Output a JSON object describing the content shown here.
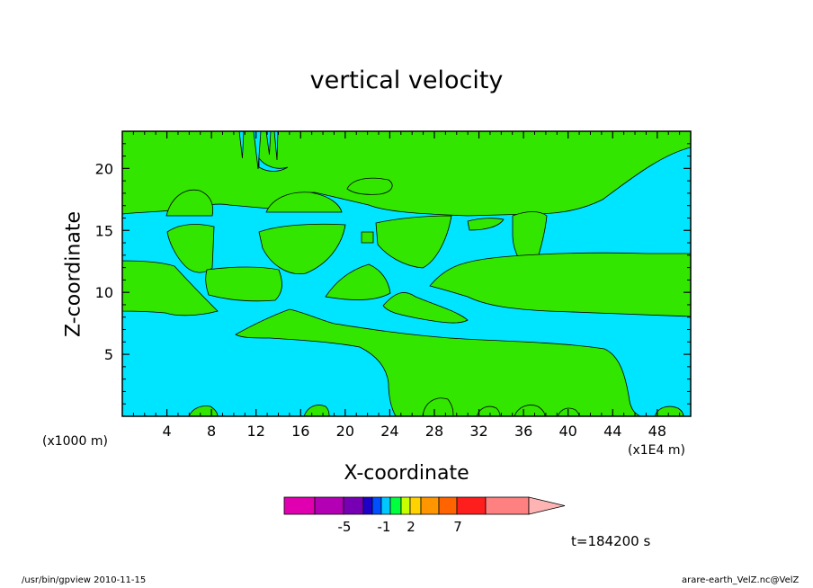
{
  "chart_data": {
    "type": "heatmap",
    "title": "vertical velocity",
    "xlabel": "X-coordinate",
    "ylabel": "Z-coordinate",
    "x_unit_left": "(x1000 m)",
    "x_unit_right": "(x1E4 m)",
    "xlim": [
      0,
      51
    ],
    "ylim": [
      0,
      23
    ],
    "x_ticks": [
      "4",
      "8",
      "12",
      "16",
      "20",
      "24",
      "28",
      "32",
      "36",
      "40",
      "44",
      "48"
    ],
    "x_tick_values": [
      4,
      8,
      12,
      16,
      20,
      24,
      28,
      32,
      36,
      40,
      44,
      48
    ],
    "y_ticks": [
      "5",
      "10",
      "15",
      "20"
    ],
    "y_tick_values": [
      5,
      10,
      15,
      20
    ],
    "field_colors": {
      "background": "#00e5ff",
      "positive": "#33e600",
      "outline": "#000000"
    },
    "colorbar": {
      "colors": [
        "#e000b0",
        "#b400b4",
        "#7800b4",
        "#1f00c8",
        "#0050ff",
        "#00c8ff",
        "#00ff3c",
        "#c8ff00",
        "#ffd200",
        "#ff9600",
        "#ff6400",
        "#ff1e1e",
        "#ff8080",
        "#ffb4b4"
      ],
      "labels": [
        "-5",
        "-1",
        "2",
        "7"
      ]
    },
    "time_label": "t=184200 s"
  },
  "footer": {
    "left": "/usr/bin/gpview   2010-11-15",
    "right": "arare-earth_VelZ.nc@VelZ"
  }
}
